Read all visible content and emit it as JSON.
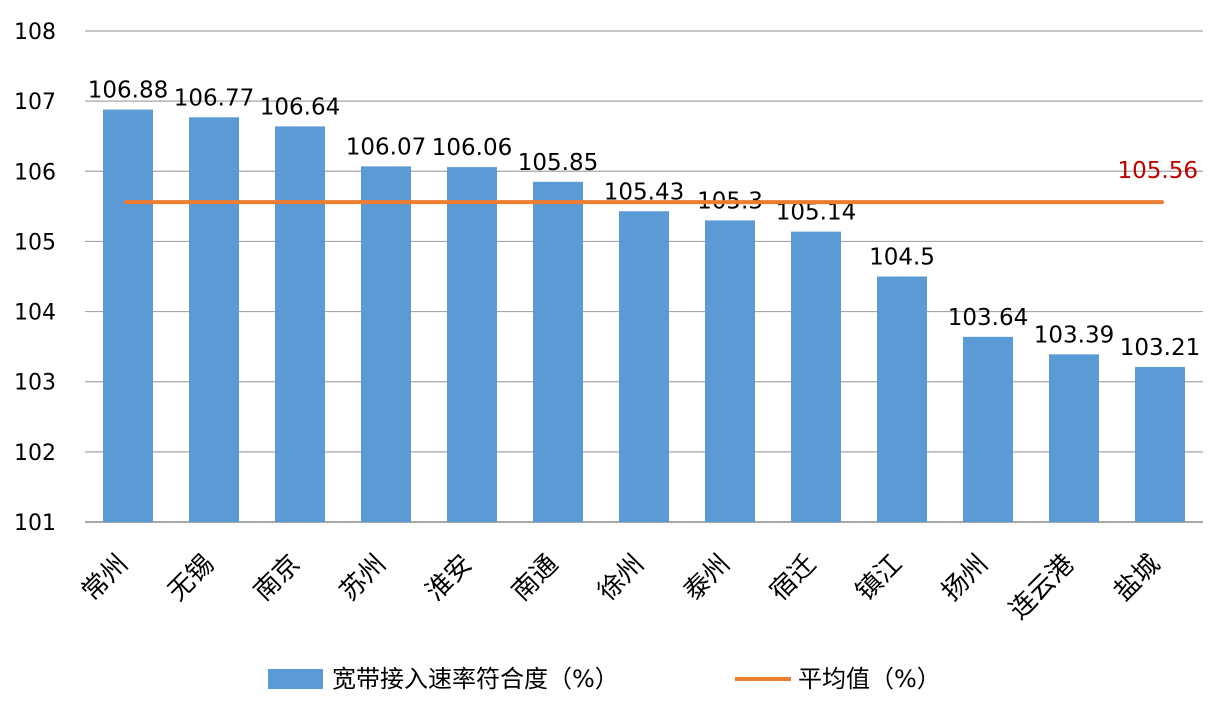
{
  "chart_data": {
    "type": "bar",
    "categories": [
      "常州",
      "无锡",
      "南京",
      "苏州",
      "淮安",
      "南通",
      "徐州",
      "泰州",
      "宿迁",
      "镇江",
      "扬州",
      "连云港",
      "盐城"
    ],
    "series": [
      {
        "name": "宽带接入速率符合度（%）",
        "type": "bar",
        "color": "#5b9bd5",
        "values": [
          106.88,
          106.77,
          106.64,
          106.07,
          106.06,
          105.85,
          105.43,
          105.3,
          105.14,
          104.5,
          103.64,
          103.39,
          103.21
        ],
        "labels": [
          "106.88",
          "106.77",
          "106.64",
          "106.07",
          "106.06",
          "105.85",
          "105.43",
          "105.3",
          "105.14",
          "104.5",
          "103.64",
          "103.39",
          "103.21"
        ]
      },
      {
        "name": "平均值（%）",
        "type": "line",
        "color": "#ed7d31",
        "value": 105.56,
        "label": "105.56",
        "label_color": "#c00000"
      }
    ],
    "ylim": [
      101,
      108
    ],
    "yticks": [
      "101",
      "102",
      "103",
      "104",
      "105",
      "106",
      "107",
      "108"
    ],
    "grid": true,
    "legend_position": "bottom"
  }
}
